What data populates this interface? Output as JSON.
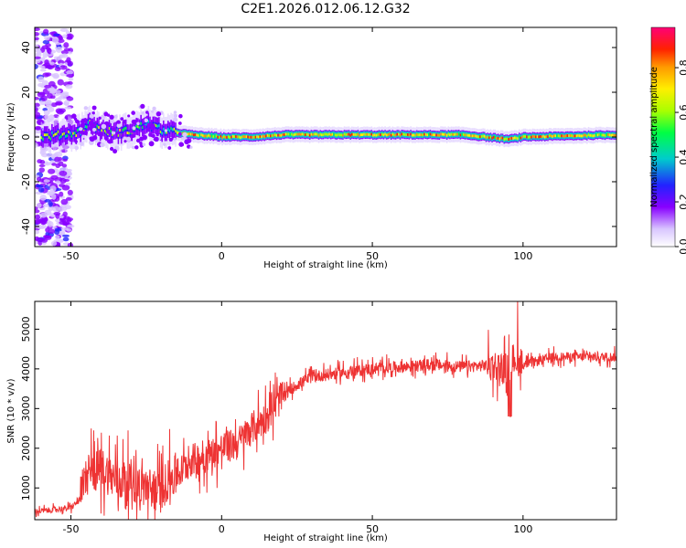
{
  "title": "C2E1.2026.012.06.12.G32",
  "chart_data": [
    {
      "type": "heatmap",
      "xlabel": "Height of straight line (km)",
      "ylabel": "Frequency (Hz)",
      "xlim": [
        -62,
        131
      ],
      "ylim": [
        -49,
        49
      ],
      "xticks": [
        -50,
        0,
        50,
        100
      ],
      "yticks": [
        -40,
        -20,
        0,
        20,
        40
      ],
      "grid": false,
      "ridge": {
        "height_km": [
          -60,
          -48,
          -44,
          -40,
          -35,
          -30,
          -25,
          -20,
          -15,
          -10,
          0,
          10,
          20,
          40,
          60,
          80,
          95,
          100,
          130
        ],
        "frequency_hz": [
          0,
          2,
          6,
          3,
          2,
          3,
          6,
          3,
          2,
          1,
          0,
          0,
          1,
          1,
          1,
          1,
          -1,
          0,
          1
        ]
      },
      "colorbar": {
        "label": "Normalized spectral amplitude",
        "ticks": [
          0.0,
          0.2,
          0.4,
          0.6,
          0.8
        ],
        "range": [
          0,
          0.98
        ]
      }
    },
    {
      "type": "line",
      "xlabel": "Height of straight line (km)",
      "ylabel": "SNR (10 * v/v)",
      "xlim": [
        -62,
        131
      ],
      "ylim": [
        200,
        5700
      ],
      "xticks": [
        -50,
        0,
        50,
        100
      ],
      "yticks": [
        1000,
        2000,
        3000,
        4000,
        5000
      ],
      "grid": false,
      "series": [
        {
          "color": "#ee3333",
          "x": [
            -62,
            -50,
            -47,
            -45,
            -40,
            -35,
            -30,
            -25,
            -20,
            -18,
            -15,
            -10,
            -5,
            0,
            5,
            10,
            15,
            20,
            25,
            30,
            40,
            50,
            60,
            70,
            80,
            90,
            95,
            97,
            100,
            110,
            120,
            131
          ],
          "y": [
            400,
            500,
            700,
            1300,
            1500,
            1200,
            1200,
            1000,
            900,
            1200,
            1300,
            1700,
            1800,
            2000,
            2100,
            2500,
            2800,
            3300,
            3600,
            3800,
            3900,
            4000,
            4050,
            4100,
            4050,
            4100,
            4000,
            4300,
            4100,
            4300,
            4300,
            4300
          ]
        }
      ]
    }
  ]
}
